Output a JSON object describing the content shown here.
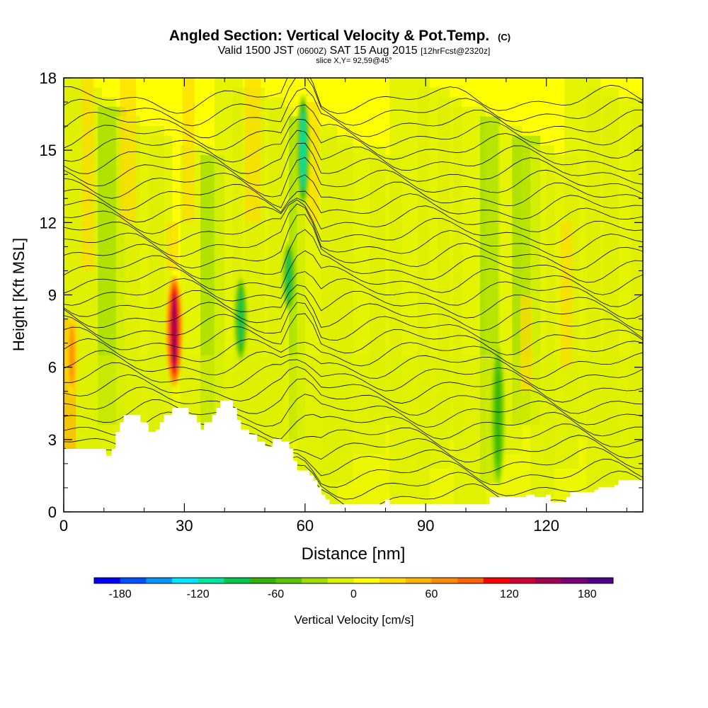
{
  "header": {
    "title": "Angled Section: Vertical Velocity & Pot.Temp.",
    "title_suffix": "(C)",
    "valid_prefix": "Valid 1500 JST",
    "valid_utc": "(0600Z)",
    "valid_date": "SAT 15 Aug 2015",
    "forecast": "[12hrFcst@2320z]",
    "slice": "slice X,Y= 92,59@45°"
  },
  "chart_data": {
    "type": "heatmap",
    "xlabel": "Distance [nm]",
    "ylabel": "Height [Kft MSL]",
    "xlim": [
      0,
      144
    ],
    "ylim": [
      0,
      18
    ],
    "x_ticks": [
      0,
      30,
      60,
      90,
      120
    ],
    "x_tick_labels": [
      "0",
      "30",
      "60",
      "90",
      "120"
    ],
    "y_ticks": [
      0,
      3,
      6,
      9,
      12,
      15,
      18
    ],
    "y_tick_labels": [
      "0",
      "3",
      "6",
      "9",
      "12",
      "15",
      "18"
    ],
    "colorbar": {
      "label": "Vertical Velocity [cm/s]",
      "range": [
        -200,
        200
      ],
      "step": 20,
      "tick_values": [
        -180,
        -120,
        -60,
        0,
        60,
        120,
        180
      ],
      "tick_labels": [
        "-180",
        "-120",
        "-60",
        "0",
        "60",
        "120",
        "180"
      ],
      "colors": [
        "#0000ff",
        "#0050ff",
        "#0096ff",
        "#00e6ff",
        "#00e6a0",
        "#00c850",
        "#32b400",
        "#5ac800",
        "#a0dc00",
        "#dcf000",
        "#ffff00",
        "#ffdc00",
        "#ffb400",
        "#ff8c00",
        "#ff6400",
        "#ff0000",
        "#d20032",
        "#a00050",
        "#780078",
        "#50008c"
      ]
    },
    "background_level": "0 to 20 (yellow)",
    "features": [
      {
        "x": 27.5,
        "height_range": [
          5.5,
          9.5
        ],
        "value": 140
      },
      {
        "x": 59.5,
        "height_range": [
          13,
          17
        ],
        "value": -110
      },
      {
        "x": 44,
        "height_range": [
          6.5,
          9.5
        ],
        "value": -90
      },
      {
        "x": 56,
        "height_range": [
          8.5,
          11
        ],
        "value": -90
      },
      {
        "x": 108,
        "height_range": [
          1.5,
          6.5
        ],
        "value": -70
      },
      {
        "x": 2,
        "height_range": [
          5,
          8
        ],
        "value": 60
      }
    ],
    "terrain_kft": [
      [
        0,
        2.6
      ],
      [
        10,
        2.6
      ],
      [
        10.5,
        2.3
      ],
      [
        11.5,
        2.3
      ],
      [
        12,
        2.6
      ],
      [
        13,
        3.3
      ],
      [
        14,
        3.7
      ],
      [
        15,
        4.0
      ],
      [
        18,
        4.0
      ],
      [
        19,
        3.7
      ],
      [
        21,
        3.3
      ],
      [
        23,
        3.4
      ],
      [
        24,
        3.7
      ],
      [
        25,
        4.0
      ],
      [
        27,
        4.3
      ],
      [
        29,
        4.3
      ],
      [
        31,
        4.0
      ],
      [
        33,
        3.7
      ],
      [
        34,
        3.4
      ],
      [
        35,
        3.7
      ],
      [
        37,
        4.0
      ],
      [
        38,
        4.3
      ],
      [
        39,
        4.6
      ],
      [
        41,
        4.6
      ],
      [
        42,
        4.3
      ],
      [
        43,
        3.8
      ],
      [
        44,
        3.4
      ],
      [
        46,
        3.2
      ],
      [
        48,
        2.9
      ],
      [
        50,
        2.7
      ],
      [
        52,
        3.0
      ],
      [
        54,
        2.9
      ],
      [
        56,
        2.6
      ],
      [
        57,
        2.1
      ],
      [
        58,
        1.7
      ],
      [
        60,
        1.7
      ],
      [
        61,
        1.5
      ],
      [
        62,
        1.3
      ],
      [
        63,
        1.0
      ],
      [
        64,
        0.7
      ],
      [
        65,
        0.5
      ],
      [
        66,
        0.3
      ],
      [
        79,
        0.3
      ],
      [
        80,
        0.5
      ],
      [
        81,
        0.3
      ],
      [
        104,
        0.3
      ],
      [
        106,
        0.6
      ],
      [
        108,
        0.6
      ],
      [
        115,
        0.7
      ],
      [
        117,
        0.6
      ],
      [
        120,
        0.7
      ],
      [
        121,
        0.4
      ],
      [
        124,
        0.4
      ],
      [
        125,
        0.6
      ],
      [
        126,
        0.8
      ],
      [
        132,
        0.9
      ],
      [
        133,
        1.0
      ],
      [
        137,
        1.1
      ],
      [
        138,
        1.3
      ],
      [
        144,
        1.3
      ]
    ]
  }
}
